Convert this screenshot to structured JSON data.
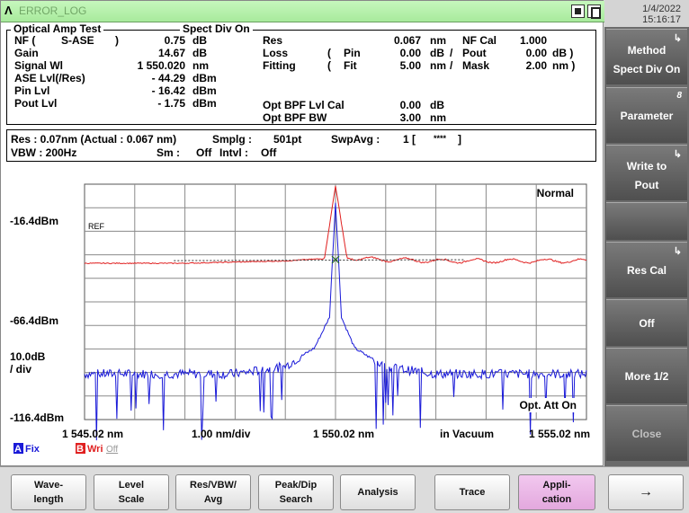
{
  "window": {
    "title": "ERROR_LOG"
  },
  "datetime": {
    "date": "1/4/2022",
    "time": "15:16:17"
  },
  "info": {
    "section_title": "Optical Amp Test",
    "mode": "Spect Div On",
    "nf_label": "NF (",
    "nf_type": "S-ASE",
    "nf_close": ")",
    "nf_value": "0.75",
    "nf_unit": "dB",
    "gain_label": "Gain",
    "gain_value": "14.67",
    "gain_unit": "dB",
    "signal_wl_label": "Signal Wl",
    "signal_wl_value": "1 550.020",
    "signal_wl_unit": "nm",
    "ase_label": "ASE Lvl(/Res)",
    "ase_value": "- 44.29",
    "ase_unit": "dBm",
    "pin_label": "Pin Lvl",
    "pin_value": "- 16.42",
    "pin_unit": "dBm",
    "pout_label": "Pout Lvl",
    "pout_value": "- 1.75",
    "pout_unit": "dBm",
    "res_label": "Res",
    "res_value": "0.067",
    "res_unit": "nm",
    "loss_label": "Loss",
    "loss_paren": "(",
    "loss_pin_label": "Pin",
    "loss_pin_value": "0.00",
    "loss_pin_unit": "dB",
    "loss_slash": "/",
    "loss_pout_label": "Pout",
    "loss_pout_value": "0.00",
    "loss_pout_unit": "dB )",
    "fitting_label": "Fitting",
    "fitting_paren": "(",
    "fit_label": "Fit",
    "fit_value": "5.00",
    "fit_unit": "nm",
    "fit_slash": "/",
    "mask_label": "Mask",
    "mask_value": "2.00",
    "mask_unit": "nm )",
    "nf_cal_label": "NF Cal",
    "nf_cal_value": "1.000",
    "bpf_cal_label": "Opt BPF Lvl Cal",
    "bpf_cal_value": "0.00",
    "bpf_cal_unit": "dB",
    "bpf_bw_label": "Opt BPF BW",
    "bpf_bw_value": "3.00",
    "bpf_bw_unit": "nm"
  },
  "resbox": {
    "res_text": "Res : 0.07nm (Actual : 0.067 nm)",
    "vbw_text": "VBW :  200Hz",
    "smplg_label": "Smplg :",
    "smplg_value": "501pt",
    "sm_label": "Sm :",
    "sm_value": "Off",
    "swpavg_label": "SwpAvg :",
    "swpavg_value": "1 [",
    "swpavg_stars": "****",
    "swpavg_close": "]",
    "intvl_label": "Intvl :",
    "intvl_value": "Off"
  },
  "chart_data": {
    "type": "line",
    "y_top_label": "-16.4dBm",
    "y_mid_label": "-66.4dBm",
    "y_bottom_label": "-116.4dBm",
    "scale_label_1": "10.0dB",
    "scale_label_2": "/ div",
    "ref_label": "REF",
    "normal_label": "Normal",
    "opt_att_label": "Opt. Att On",
    "x_start_label": "1 545.02 nm",
    "x_div_label": "1.00 nm/div",
    "x_center_label": "1 550.02 nm",
    "x_medium_label": "in Vacuum",
    "x_end_label": "1 555.02 nm",
    "trace_a_label": "A",
    "trace_a_state": "Fix",
    "trace_b_label": "B",
    "trace_b_state": "Wri",
    "trace_b_extra": "Off",
    "x_range_nm": [
      1545.02,
      1555.02
    ],
    "y_range_dbm": [
      -116.4,
      -16.4
    ],
    "series": [
      {
        "name": "A",
        "color": "#1a1ad8",
        "x": [
          1545.02,
          1548.0,
          1549.0,
          1549.6,
          1549.9,
          1550.02,
          1550.14,
          1550.4,
          1551.0,
          1552.0,
          1555.02
        ],
        "y": [
          -97,
          -97,
          -94,
          -86,
          -73,
          -24,
          -73,
          -86,
          -94,
          -97,
          -97
        ]
      },
      {
        "name": "B",
        "color": "#e02020",
        "x": [
          1545.02,
          1547.0,
          1549.0,
          1549.8,
          1550.02,
          1550.25,
          1552.0,
          1554.0,
          1555.02
        ],
        "y": [
          -50,
          -50,
          -49,
          -48,
          -17,
          -48,
          -49,
          -49,
          -49
        ]
      }
    ],
    "marker": {
      "x": 1550.02,
      "y": -48.5
    },
    "grid": true
  },
  "softkeys": [
    {
      "label1": "Method",
      "label2": "Spect Div On",
      "marker": "arrow"
    },
    {
      "label1": "Parameter",
      "label2": "",
      "marker": "8"
    },
    {
      "label1": "Write to",
      "label2": "Pout",
      "marker": "arrow"
    },
    {
      "label1": "",
      "label2": "",
      "marker": ""
    },
    {
      "label1": "Res Cal",
      "label2": "",
      "marker": "arrow"
    },
    {
      "label1": "Off",
      "label2": "",
      "marker": ""
    },
    {
      "label1": "More 1/2",
      "label2": "",
      "marker": ""
    },
    {
      "label1": "Close",
      "label2": "",
      "marker": ""
    }
  ],
  "funckeys": [
    {
      "l1": "Wave-",
      "l2": "length"
    },
    {
      "l1": "Level",
      "l2": "Scale"
    },
    {
      "l1": "Res/VBW/",
      "l2": "Avg"
    },
    {
      "l1": "Peak/Dip",
      "l2": "Search"
    },
    {
      "mid": "Analysis"
    },
    {
      "mid": "Trace"
    },
    {
      "l1": "Appli-",
      "l2": "cation"
    },
    {
      "mid": "→"
    }
  ]
}
